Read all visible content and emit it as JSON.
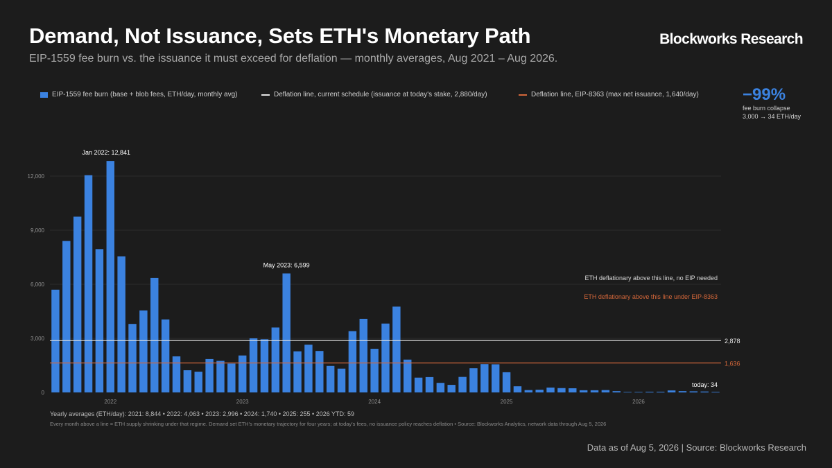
{
  "header": {
    "title": "Demand, Not Issuance, Sets ETH's Monetary Path",
    "subtitle": "EIP-1559 fee burn vs. the issuance it must exceed for deflation — monthly averages, Aug 2021 – Aug 2026.",
    "brand": "Blockworks Research"
  },
  "legend": {
    "burn": "EIP-1559 fee burn (base + blob fees, ETH/day, monthly avg)",
    "current": "Deflation line, current schedule (issuance at today's stake, 2,880/day)",
    "eip": "Deflation line, EIP-8363 (max net issuance, 1,640/day)"
  },
  "kpi": {
    "value": "−99%",
    "label1": "fee burn collapse",
    "label2": "3,000 → 34 ETH/day"
  },
  "colors": {
    "bar": "#3b82e0",
    "current_line": "#e6e6e6",
    "eip_line": "#d4673a",
    "grid": "#2c2c2c",
    "background": "#1c1c1c"
  },
  "chart_data": {
    "type": "bar",
    "categories": [
      "Aug 2021",
      "Sep 2021",
      "Oct 2021",
      "Nov 2021",
      "Dec 2021",
      "Jan 2022",
      "Feb 2022",
      "Mar 2022",
      "Apr 2022",
      "May 2022",
      "Jun 2022",
      "Jul 2022",
      "Aug 2022",
      "Sep 2022",
      "Oct 2022",
      "Nov 2022",
      "Dec 2022",
      "Jan 2023",
      "Feb 2023",
      "Mar 2023",
      "Apr 2023",
      "May 2023",
      "Jun 2023",
      "Jul 2023",
      "Aug 2023",
      "Sep 2023",
      "Oct 2023",
      "Nov 2023",
      "Dec 2023",
      "Jan 2024",
      "Feb 2024",
      "Mar 2024",
      "Apr 2024",
      "May 2024",
      "Jun 2024",
      "Jul 2024",
      "Aug 2024",
      "Sep 2024",
      "Oct 2024",
      "Nov 2024",
      "Dec 2024",
      "Jan 2025",
      "Feb 2025",
      "Mar 2025",
      "Apr 2025",
      "May 2025",
      "Jun 2025",
      "Jul 2025",
      "Aug 2025",
      "Sep 2025",
      "Oct 2025",
      "Nov 2025",
      "Dec 2025",
      "Jan 2026",
      "Feb 2026",
      "Mar 2026",
      "Apr 2026",
      "May 2026",
      "Jun 2026",
      "Jul 2026",
      "Aug 2026"
    ],
    "series": [
      {
        "name": "EIP-1559 fee burn (base + blob fees, ETH/day, monthly avg)",
        "values": [
          5700,
          8400,
          9750,
          12050,
          7950,
          12841,
          7550,
          3800,
          4550,
          6350,
          4050,
          2000,
          1230,
          1150,
          1850,
          1750,
          1600,
          2050,
          3000,
          2950,
          3600,
          6599,
          2280,
          2650,
          2300,
          1470,
          1320,
          3400,
          4080,
          2420,
          3820,
          4760,
          1820,
          820,
          850,
          530,
          420,
          860,
          1340,
          1570,
          1560,
          1120,
          340,
          130,
          150,
          270,
          240,
          230,
          120,
          120,
          130,
          70,
          30,
          30,
          40,
          40,
          110,
          70,
          60,
          50,
          34
        ]
      }
    ],
    "reference_lines": [
      {
        "name": "Deflation line, current schedule",
        "value": 2878,
        "label": "2,878"
      },
      {
        "name": "Deflation line, EIP-8363",
        "value": 1636,
        "label": "1,636"
      }
    ],
    "annotations": {
      "peak": "Jan 2022: 12,841",
      "spike": "May 2023: 6,599",
      "today": "today: 34",
      "above_current": "ETH deflationary above this line, no EIP needed",
      "above_eip": "ETH deflationary above this line under EIP-8363"
    },
    "y_ticks": [
      0,
      3000,
      6000,
      9000,
      12000
    ],
    "y_tick_labels": [
      "0",
      "3,000",
      "6,000",
      "9,000",
      "12,000"
    ],
    "x_tick_labels": [
      "2022",
      "2023",
      "2024",
      "2025",
      "2026"
    ],
    "ylim": [
      0,
      13000
    ],
    "grid": true,
    "legend_position": "top"
  },
  "footer": {
    "averages": "Yearly averages (ETH/day): 2021: 8,844 • 2022: 4,063 • 2023: 2,996 • 2024: 1,740 • 2025: 255 • 2026 YTD: 59",
    "note": "Every month above a line = ETH supply shrinking under that regime. Demand set ETH's monetary trajectory for four years; at today's fees, no issuance policy reaches deflation • Source: Blockworks Analytics, network data through Aug 5, 2026",
    "source": "Data as of Aug 5, 2026 | Source: Blockworks Research"
  }
}
